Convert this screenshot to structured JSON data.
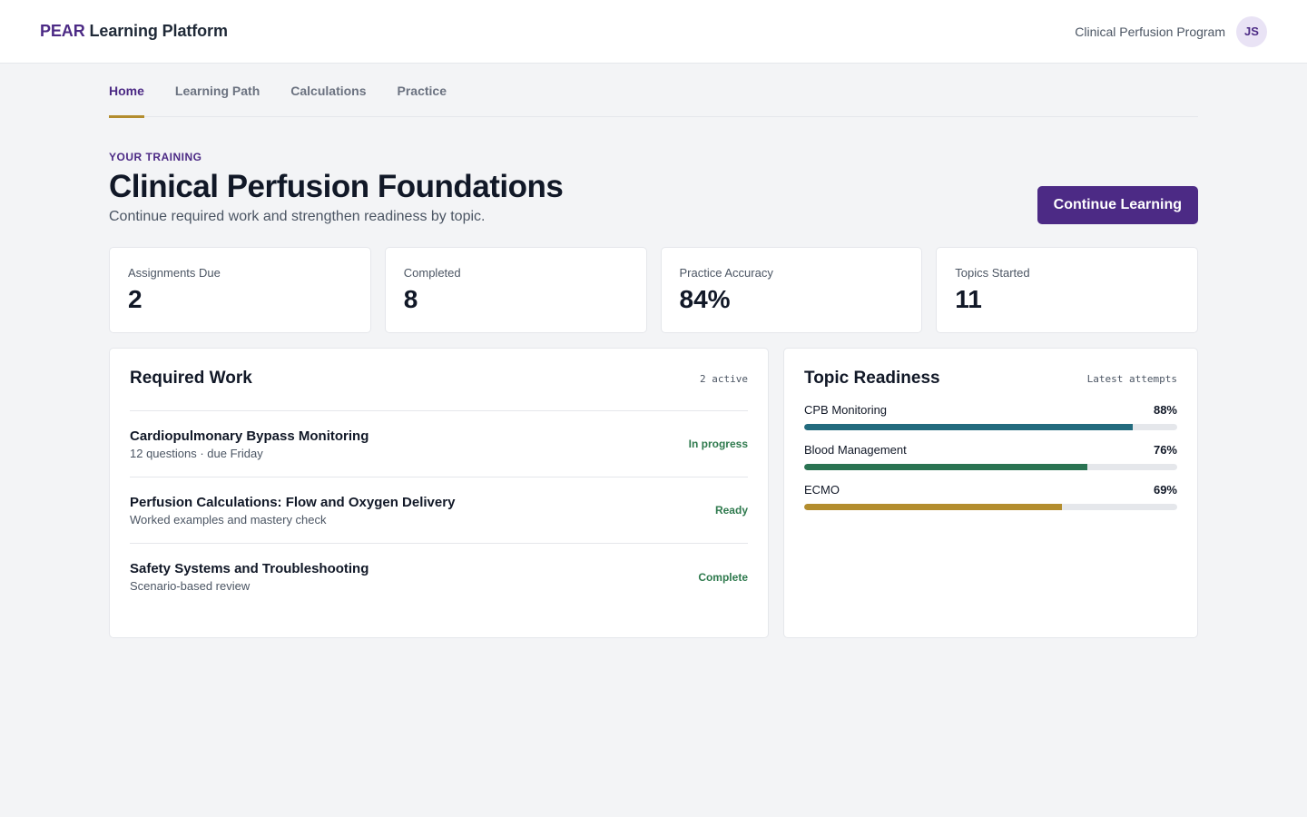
{
  "header": {
    "brand_accent": "PEAR",
    "brand_rest": "Learning Platform",
    "program": "Clinical Perfusion Program",
    "avatar_initials": "JS"
  },
  "tabs": [
    {
      "label": "Home",
      "active": true
    },
    {
      "label": "Learning Path",
      "active": false
    },
    {
      "label": "Calculations",
      "active": false
    },
    {
      "label": "Practice",
      "active": false
    }
  ],
  "hero": {
    "eyebrow": "YOUR TRAINING",
    "title": "Clinical Perfusion Foundations",
    "subtitle": "Continue required work and strengthen readiness by topic.",
    "cta_label": "Continue Learning"
  },
  "stats": [
    {
      "label": "Assignments Due",
      "value": "2"
    },
    {
      "label": "Completed",
      "value": "8"
    },
    {
      "label": "Practice Accuracy",
      "value": "84%"
    },
    {
      "label": "Topics Started",
      "value": "11"
    }
  ],
  "required_work": {
    "title": "Required Work",
    "meta": "2 active",
    "items": [
      {
        "title": "Cardiopulmonary Bypass Monitoring",
        "subtitle": "12 questions · due Friday",
        "status": "In progress"
      },
      {
        "title": "Perfusion Calculations: Flow and Oxygen Delivery",
        "subtitle": "Worked examples and mastery check",
        "status": "Ready"
      },
      {
        "title": "Safety Systems and Troubleshooting",
        "subtitle": "Scenario-based review",
        "status": "Complete"
      }
    ]
  },
  "topic_readiness": {
    "title": "Topic Readiness",
    "meta": "Latest attempts",
    "topics": [
      {
        "name": "CPB Monitoring",
        "percent_label": "88%",
        "percent": 88,
        "color": "#236b7e"
      },
      {
        "name": "Blood Management",
        "percent_label": "76%",
        "percent": 76,
        "color": "#2a7352"
      },
      {
        "name": "ECMO",
        "percent_label": "69%",
        "percent": 69,
        "color": "#b38d2e"
      }
    ]
  },
  "colors": {
    "brand": "#4c2a85",
    "tab_underline": "#b38d2e",
    "status_green": "#2f7a4e"
  }
}
